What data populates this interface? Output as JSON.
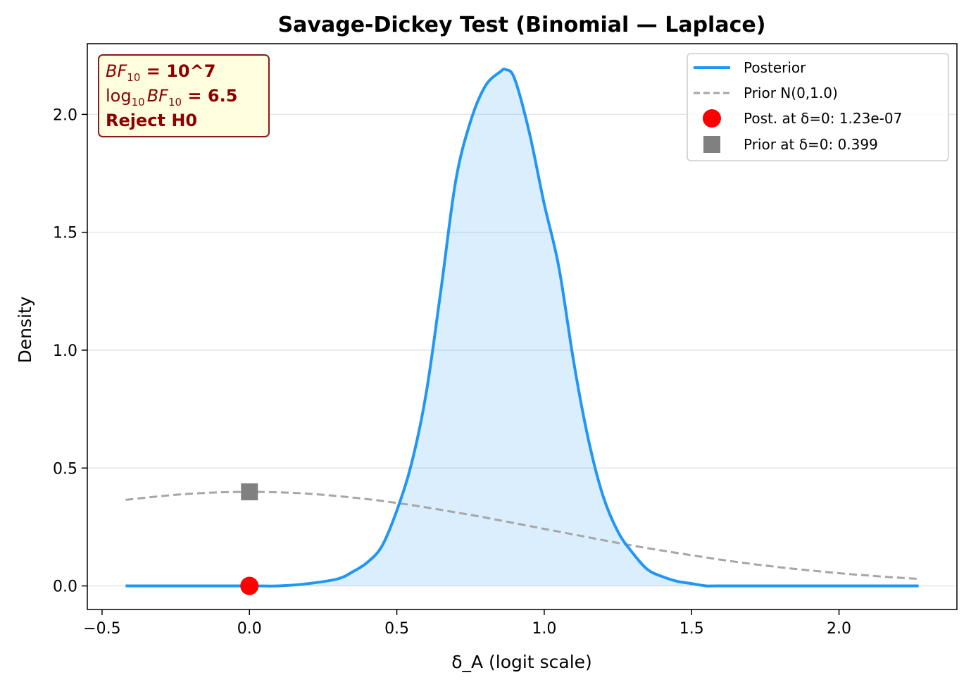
{
  "chart_data": {
    "type": "line",
    "title": "Savage-Dickey Test (Binomial — Laplace)",
    "xlabel": "δ_A (logit scale)",
    "ylabel": "Density",
    "xlim": [
      -0.55,
      2.4
    ],
    "ylim": [
      -0.1,
      2.3
    ],
    "xticks": [
      -0.5,
      0.0,
      0.5,
      1.0,
      1.5,
      2.0
    ],
    "xtick_labels": [
      "−0.5",
      "0.0",
      "0.5",
      "1.0",
      "1.5",
      "2.0"
    ],
    "yticks": [
      0.0,
      0.5,
      1.0,
      1.5,
      2.0
    ],
    "ytick_labels": [
      "0.0",
      "0.5",
      "1.0",
      "1.5",
      "2.0"
    ],
    "grid": "horizontal",
    "legend_position": "top-right",
    "series": [
      {
        "name": "Posterior",
        "color": "#2196f3",
        "style": "solid",
        "fill": true,
        "x": [
          -0.42,
          0.0,
          0.1,
          0.2,
          0.3,
          0.35,
          0.4,
          0.45,
          0.5,
          0.55,
          0.6,
          0.65,
          0.7,
          0.75,
          0.8,
          0.85,
          0.87,
          0.9,
          0.95,
          1.0,
          1.05,
          1.1,
          1.15,
          1.2,
          1.25,
          1.3,
          1.35,
          1.4,
          1.45,
          1.5,
          1.55,
          1.6,
          2.0,
          2.27
        ],
        "y": [
          0.0,
          0.0,
          0.0,
          0.01,
          0.03,
          0.06,
          0.1,
          0.17,
          0.32,
          0.52,
          0.82,
          1.26,
          1.72,
          1.97,
          2.12,
          2.18,
          2.19,
          2.15,
          1.92,
          1.62,
          1.35,
          0.95,
          0.62,
          0.38,
          0.23,
          0.14,
          0.07,
          0.04,
          0.02,
          0.01,
          0.0,
          0.0,
          0.0,
          0.0
        ]
      },
      {
        "name": "Prior N(0,1.0)",
        "color": "#a6a6a6",
        "style": "dashed",
        "x": [
          -0.42,
          -0.3,
          -0.2,
          -0.1,
          0.0,
          0.1,
          0.2,
          0.3,
          0.4,
          0.5,
          0.6,
          0.7,
          0.8,
          0.9,
          1.0,
          1.1,
          1.2,
          1.3,
          1.4,
          1.5,
          1.6,
          1.7,
          1.8,
          1.9,
          2.0,
          2.1,
          2.2,
          2.27
        ],
        "y": [
          0.365,
          0.381,
          0.391,
          0.397,
          0.399,
          0.397,
          0.391,
          0.381,
          0.368,
          0.352,
          0.333,
          0.312,
          0.29,
          0.266,
          0.242,
          0.218,
          0.194,
          0.171,
          0.15,
          0.13,
          0.111,
          0.094,
          0.079,
          0.066,
          0.054,
          0.044,
          0.035,
          0.03
        ]
      }
    ],
    "markers": [
      {
        "name": "Post. at δ=0: 1.23e-07",
        "shape": "circle",
        "color": "#ff0000",
        "x": 0.0,
        "y": 1.23e-07
      },
      {
        "name": "Prior at δ=0: 0.399",
        "shape": "square",
        "color": "#808080",
        "x": 0.0,
        "y": 0.399
      }
    ],
    "annotation": {
      "line1_label": "BF",
      "line1_sub": "10",
      "line1_value": " = 10^7",
      "line2_label": "log",
      "line2_sub": "10",
      "line2_mid": "BF",
      "line2_sub2": "10",
      "line2_value": " = 6.5",
      "line3": "Reject H0"
    }
  }
}
